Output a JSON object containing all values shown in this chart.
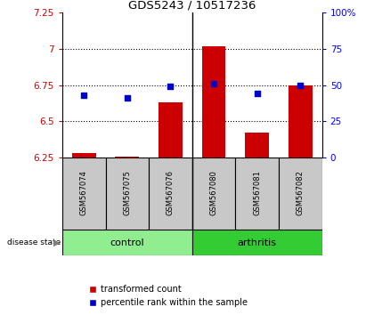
{
  "title": "GDS5243 / 10517236",
  "samples": [
    "GSM567074",
    "GSM567075",
    "GSM567076",
    "GSM567080",
    "GSM567081",
    "GSM567082"
  ],
  "bar_values": [
    6.28,
    6.255,
    6.63,
    7.02,
    6.42,
    6.75
  ],
  "dot_values": [
    43,
    41,
    49,
    51,
    44,
    50
  ],
  "ylim_left": [
    6.25,
    7.25
  ],
  "ylim_right": [
    0,
    100
  ],
  "yticks_left": [
    6.25,
    6.5,
    6.75,
    7.0,
    7.25
  ],
  "yticks_right": [
    0,
    25,
    50,
    75,
    100
  ],
  "ytick_labels_left": [
    "6.25",
    "6.5",
    "6.75",
    "7",
    "7.25"
  ],
  "ytick_labels_right": [
    "0",
    "25",
    "50",
    "75",
    "100%"
  ],
  "hlines": [
    6.5,
    6.75,
    7.0
  ],
  "bar_color": "#cc0000",
  "dot_color": "#0000cc",
  "control_color": "#90ee90",
  "arthritis_color": "#33cc33",
  "sample_bg_color": "#c8c8c8",
  "bar_bottom": 6.25,
  "legend_bar_label": "transformed count",
  "legend_dot_label": "percentile rank within the sample"
}
